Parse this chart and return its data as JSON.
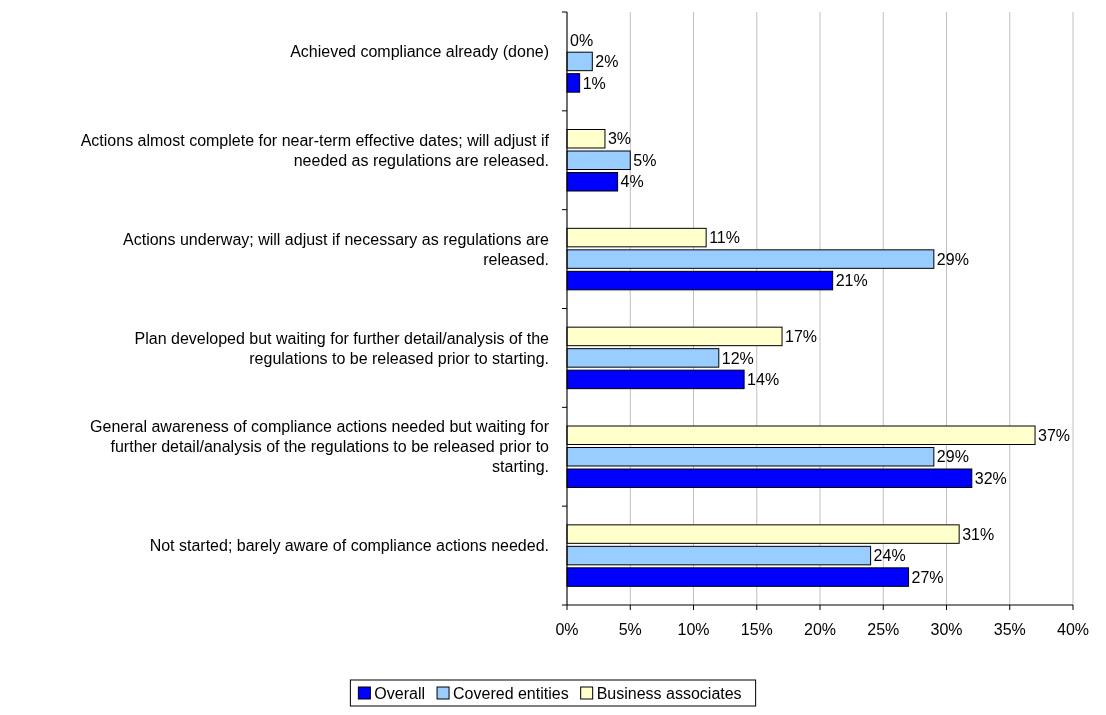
{
  "chart_data": {
    "type": "bar",
    "orientation": "horizontal",
    "categories": [
      "Achieved compliance already (done)",
      "Actions almost complete for near-term effective dates; will adjust if needed as regulations are released.",
      "Actions underway; will adjust if necessary as regulations are released.",
      "Plan developed but waiting for further detail/analysis of the regulations to be released prior to starting.",
      "General awareness of compliance actions needed but waiting for further detail/analysis of the regulations to be released prior to starting.",
      "Not started; barely aware of compliance actions needed."
    ],
    "series": [
      {
        "name": "Overall",
        "color": "#0000ff",
        "values": [
          1,
          4,
          21,
          14,
          32,
          27
        ],
        "value_labels": [
          "1%",
          "4%",
          "21%",
          "14%",
          "32%",
          "27%"
        ]
      },
      {
        "name": "Covered entities",
        "color": "#99ccff",
        "values": [
          2,
          5,
          29,
          12,
          29,
          24
        ],
        "value_labels": [
          "2%",
          "5%",
          "29%",
          "12%",
          "29%",
          "24%"
        ]
      },
      {
        "name": "Business associates",
        "color": "#ffffcc",
        "values": [
          0,
          3,
          11,
          17,
          37,
          31
        ],
        "value_labels": [
          "0%",
          "3%",
          "11%",
          "17%",
          "37%",
          "31%"
        ]
      }
    ],
    "xlim": [
      0,
      40
    ],
    "xticks": [
      {
        "value": 0,
        "label": "0%"
      },
      {
        "value": 5,
        "label": "5%"
      },
      {
        "value": 10,
        "label": "10%"
      },
      {
        "value": 15,
        "label": "15%"
      },
      {
        "value": 20,
        "label": "20%"
      },
      {
        "value": 25,
        "label": "25%"
      },
      {
        "value": 30,
        "label": "30%"
      },
      {
        "value": 35,
        "label": "35%"
      },
      {
        "value": 40,
        "label": "40%"
      }
    ],
    "grid": "x",
    "legend": "bottom"
  }
}
